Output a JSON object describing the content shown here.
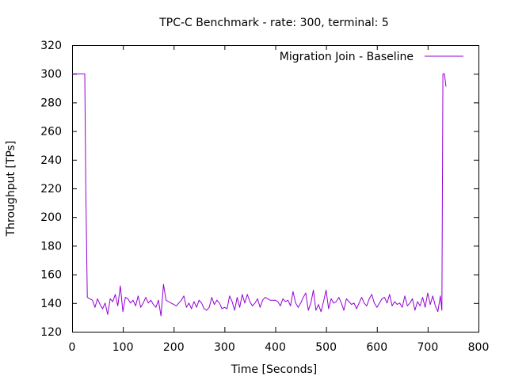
{
  "chart_data": {
    "type": "line",
    "title": "TPC-C Benchmark - rate: 300, terminal: 5",
    "xlabel": "Time [Seconds]",
    "ylabel": "Throughput [TPs]",
    "xlim": [
      0,
      800
    ],
    "ylim": [
      120,
      320
    ],
    "xticks": [
      0,
      100,
      200,
      300,
      400,
      500,
      600,
      700,
      800
    ],
    "yticks": [
      120,
      140,
      160,
      180,
      200,
      220,
      240,
      260,
      280,
      300,
      320
    ],
    "grid": false,
    "legend_position": "top-right",
    "series": [
      {
        "name": "Migration Join - Baseline",
        "color": "#9400d3",
        "x": [
          0,
          5,
          10,
          15,
          20,
          25,
          27,
          30,
          35,
          40,
          45,
          50,
          55,
          60,
          65,
          70,
          75,
          80,
          85,
          90,
          95,
          100,
          105,
          110,
          115,
          120,
          125,
          130,
          135,
          140,
          145,
          150,
          155,
          160,
          165,
          170,
          175,
          180,
          185,
          190,
          195,
          200,
          205,
          210,
          215,
          220,
          225,
          230,
          235,
          240,
          245,
          250,
          255,
          260,
          265,
          270,
          275,
          280,
          285,
          290,
          295,
          300,
          305,
          310,
          315,
          320,
          325,
          330,
          335,
          340,
          345,
          350,
          355,
          360,
          365,
          370,
          375,
          380,
          385,
          390,
          395,
          400,
          405,
          410,
          415,
          420,
          425,
          430,
          435,
          440,
          445,
          450,
          455,
          460,
          465,
          470,
          475,
          480,
          485,
          490,
          495,
          500,
          505,
          510,
          515,
          520,
          525,
          530,
          535,
          540,
          545,
          550,
          555,
          560,
          565,
          570,
          575,
          580,
          585,
          590,
          595,
          600,
          605,
          610,
          615,
          620,
          625,
          630,
          635,
          640,
          645,
          650,
          655,
          660,
          665,
          670,
          675,
          680,
          685,
          690,
          695,
          700,
          705,
          710,
          715,
          720,
          725,
          728,
          730,
          733,
          736
        ],
        "values": [
          300,
          300,
          300,
          300,
          300,
          300,
          220,
          144,
          143,
          142,
          137,
          143,
          139,
          136,
          140,
          132,
          143,
          141,
          146,
          138,
          152,
          134,
          144,
          143,
          140,
          142,
          138,
          145,
          137,
          140,
          144,
          140,
          142,
          139,
          137,
          142,
          131,
          153,
          142,
          141,
          140,
          139,
          138,
          140,
          142,
          145,
          137,
          140,
          136,
          141,
          137,
          142,
          140,
          136,
          135,
          137,
          144,
          139,
          142,
          140,
          136,
          137,
          136,
          145,
          141,
          135,
          144,
          137,
          146,
          140,
          146,
          141,
          138,
          140,
          143,
          137,
          142,
          144,
          143,
          142,
          142,
          142,
          141,
          138,
          143,
          141,
          142,
          138,
          148,
          140,
          137,
          140,
          144,
          147,
          135,
          140,
          149,
          135,
          139,
          134,
          141,
          149,
          136,
          143,
          140,
          141,
          144,
          140,
          135,
          143,
          141,
          139,
          140,
          136,
          140,
          144,
          140,
          138,
          143,
          146,
          140,
          137,
          140,
          143,
          144,
          140,
          146,
          138,
          141,
          139,
          140,
          137,
          145,
          138,
          140,
          143,
          135,
          141,
          138,
          144,
          137,
          147,
          139,
          145,
          138,
          134,
          145,
          135,
          300,
          300,
          291
        ]
      }
    ]
  }
}
